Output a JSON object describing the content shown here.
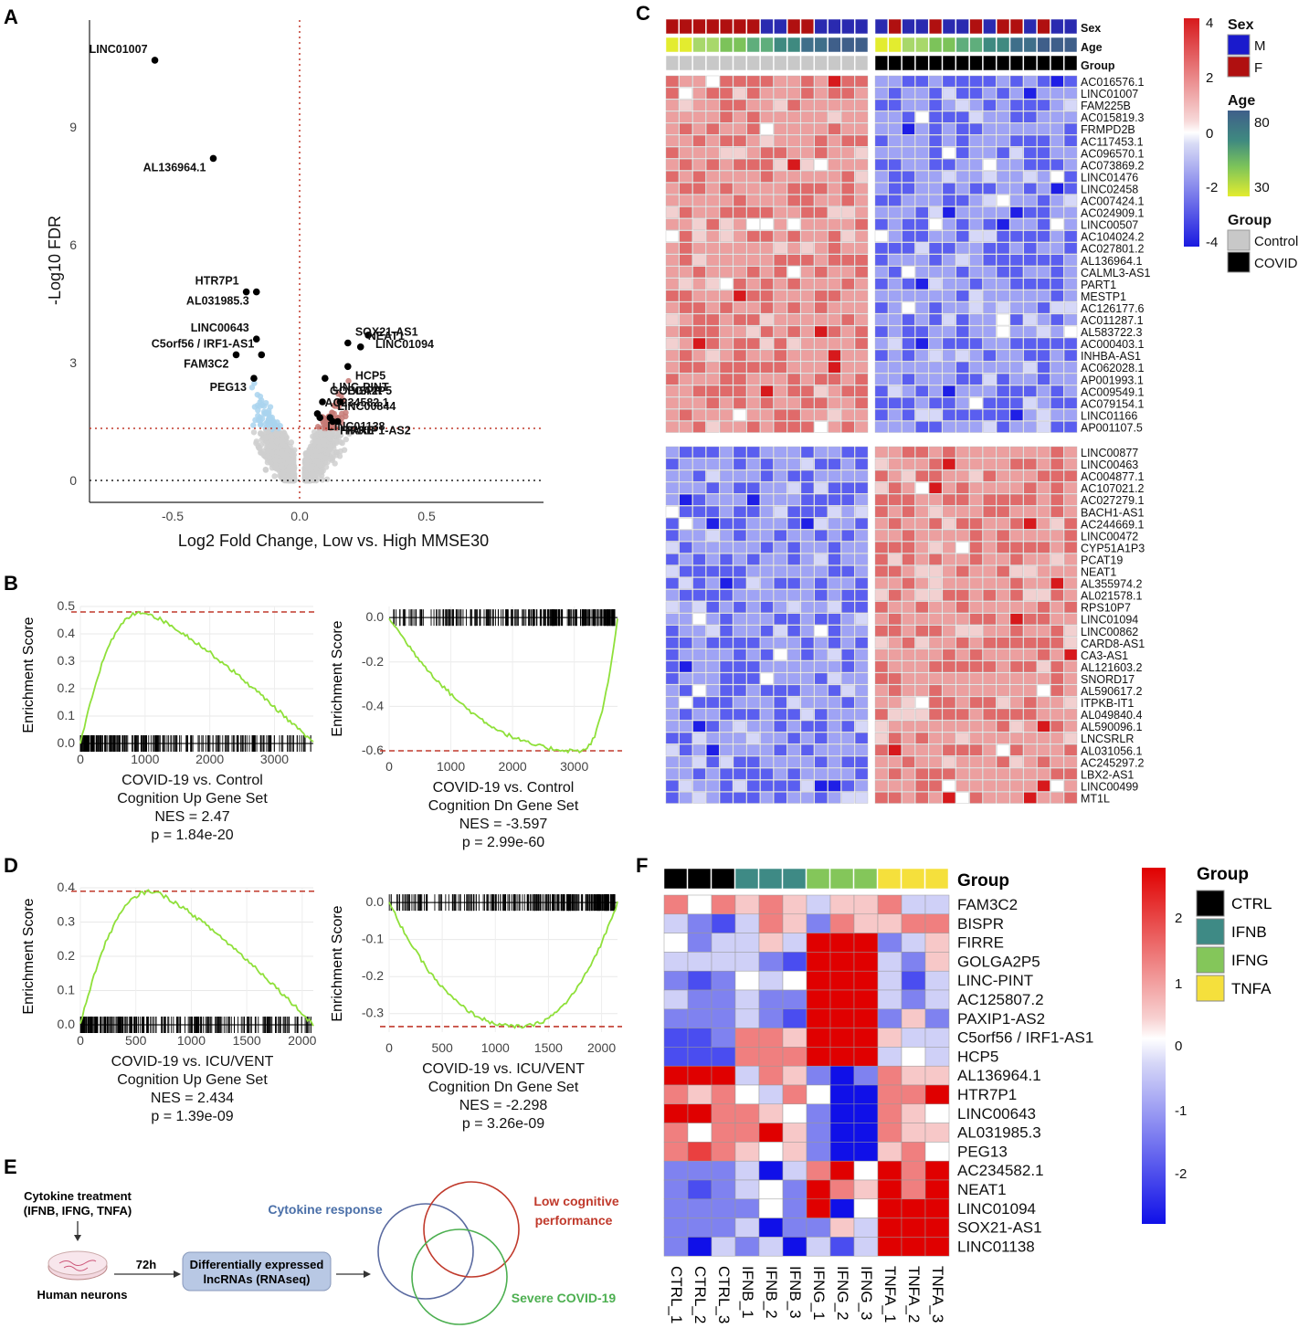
{
  "panels": {
    "A": "A",
    "B": "B",
    "C": "C",
    "D": "D",
    "E": "E",
    "F": "F"
  },
  "volcano": {
    "xlabel": "Log2 Fold Change, Low vs. High MMSE30",
    "ylabel": "-Log10 FDR",
    "xticks": [
      "-0.5",
      "0.0",
      "0.5"
    ],
    "yticks": [
      "0",
      "3",
      "6",
      "9"
    ],
    "genes": [
      {
        "name": "LINC01007",
        "x": -0.57,
        "y": 10.7
      },
      {
        "name": "AL136964.1",
        "x": -0.34,
        "y": 8.2
      },
      {
        "name": "HTR7P1",
        "x": -0.21,
        "y": 4.8
      },
      {
        "name": "AL031985.3",
        "x": -0.17,
        "y": 4.8
      },
      {
        "name": "LINC00643",
        "x": -0.17,
        "y": 3.6
      },
      {
        "name": "FAM3C2",
        "x": -0.25,
        "y": 3.2
      },
      {
        "name": "C5orf56 / IRF1-AS1",
        "x": -0.15,
        "y": 3.2
      },
      {
        "name": "PEG13",
        "x": -0.18,
        "y": 2.6
      },
      {
        "name": "GOLGA2P5",
        "x": 0.09,
        "y": 2.0
      },
      {
        "name": "LINC01138",
        "x": 0.08,
        "y": 1.6
      },
      {
        "name": "AC234582.1",
        "x": 0.07,
        "y": 1.7
      },
      {
        "name": "LINC-PINT",
        "x": 0.1,
        "y": 2.6
      },
      {
        "name": "SOX21-AS1",
        "x": 0.19,
        "y": 3.5
      },
      {
        "name": "LINC01094",
        "x": 0.27,
        "y": 3.7
      },
      {
        "name": "NEAT1",
        "x": 0.24,
        "y": 3.4
      },
      {
        "name": "HCP5",
        "x": 0.19,
        "y": 2.9
      },
      {
        "name": "BISPR",
        "x": 0.16,
        "y": 2.0
      },
      {
        "name": "FIRRE",
        "x": 0.13,
        "y": 1.5
      },
      {
        "name": "LINC00844",
        "x": 0.12,
        "y": 1.6
      },
      {
        "name": "PAXIP1-AS2",
        "x": 0.15,
        "y": 1.5
      }
    ]
  },
  "gsea": [
    {
      "title": "COVID-19 vs. Control",
      "set": "Cognition Up Gene Set",
      "nes": "NES = 2.47",
      "p": "p = 1.84e-20",
      "ylabel": "Enrichment Score",
      "yticks": [
        "0.0",
        "0.1",
        "0.2",
        "0.3",
        "0.4",
        "0.5"
      ],
      "xticks": [
        "0",
        "1000",
        "2000",
        "3000"
      ]
    },
    {
      "title": "COVID-19 vs. Control",
      "set": "Cognition Dn Gene Set",
      "nes": "NES = -3.597",
      "p": "p = 2.99e-60",
      "ylabel": "Enrichment Score",
      "yticks": [
        "0.0",
        "-0.2",
        "-0.4",
        "-0.6"
      ],
      "xticks": [
        "0",
        "1000",
        "2000",
        "3000"
      ]
    },
    {
      "title": "COVID-19 vs. ICU/VENT",
      "set": "Cognition Up Gene Set",
      "nes": "NES = 2.434",
      "p": "p = 1.39e-09",
      "ylabel": "Enrichment Score",
      "yticks": [
        "0.0",
        "0.1",
        "0.2",
        "0.3",
        "0.4"
      ],
      "xticks": [
        "0",
        "500",
        "1000",
        "1500",
        "2000"
      ]
    },
    {
      "title": "COVID-19 vs. ICU/VENT",
      "set": "Cognition Dn Gene Set",
      "nes": "NES = -2.298",
      "p": "p = 3.26e-09",
      "ylabel": "Enrichment Score",
      "yticks": [
        "0.0",
        "-0.1",
        "-0.2",
        "-0.3"
      ],
      "xticks": [
        "0",
        "500",
        "1000",
        "1500",
        "2000"
      ]
    }
  ],
  "heatmapC": {
    "annot_labels": [
      "Sex",
      "Age",
      "Group"
    ],
    "rows_top": [
      "AC016576.1",
      "LINC01007",
      "FAM225B",
      "AC015819.3",
      "FRMPD2B",
      "AC117453.1",
      "AC096570.1",
      "AC073869.2",
      "LINC01476",
      "LINC02458",
      "AC007424.1",
      "AC024909.1",
      "LINC00507",
      "AC104024.2",
      "AC027801.2",
      "AL136964.1",
      "CALML3-AS1",
      "PART1",
      "MESTP1",
      "AC126177.6",
      "AC011287.1",
      "AL583722.3",
      "AC000403.1",
      "INHBA-AS1",
      "AC062028.1",
      "AP001993.1",
      "AC009549.1",
      "AC079154.1",
      "LINC01166",
      "AP001107.5"
    ],
    "rows_bottom": [
      "LINC00877",
      "LINC00463",
      "AC004877.1",
      "AC107021.2",
      "AC027279.1",
      "BACH1-AS1",
      "AC244669.1",
      "LINC00472",
      "CYP51A1P3",
      "PCAT19",
      "NEAT1",
      "AL355974.2",
      "AL021578.1",
      "RPS10P7",
      "LINC01094",
      "LINC00862",
      "CARD8-AS1",
      "CA3-AS1",
      "AL121603.2",
      "SNORD17",
      "AL590617.2",
      "ITPKB-IT1",
      "AL049840.4",
      "AL590096.1",
      "LNCSRLR",
      "AL031056.1",
      "AC245297.2",
      "LBX2-AS1",
      "LINC00499",
      "MT1L"
    ],
    "scale": [
      "4",
      "2",
      "0",
      "-2",
      "-4"
    ],
    "legend": {
      "sex_title": "Sex",
      "sex": [
        "M",
        "F"
      ],
      "age_title": "Age",
      "age": [
        "80",
        "30"
      ],
      "group_title": "Group",
      "group": [
        "Control",
        "COVID"
      ]
    }
  },
  "panelE": {
    "treatment": "Cytokine treatment",
    "treatment2": "(IFNB, IFNG, TNFA)",
    "neurons": "Human neurons",
    "time": "72h",
    "box1": "Differentially expressed",
    "box2": "lncRNAs (RNAseq)",
    "venn1": "Cytokine response",
    "venn2a": "Low cognitive",
    "venn2b": "performance",
    "venn3": "Severe COVID-19",
    "colors": {
      "blue": "#4a6fa8",
      "red": "#c0392b",
      "green": "#4caf50"
    }
  },
  "heatmapF": {
    "group_label": "Group",
    "rows": [
      "FAM3C2",
      "BISPR",
      "FIRRE",
      "GOLGA2P5",
      "LINC-PINT",
      "AC125807.2",
      "PAXIP1-AS2",
      "C5orf56 / IRF1-AS1",
      "HCP5",
      "AL136964.1",
      "HTR7P1",
      "LINC00643",
      "AL031985.3",
      "PEG13",
      "AC234582.1",
      "NEAT1",
      "LINC01094",
      "SOX21-AS1",
      "LINC01138"
    ],
    "cols": [
      "CTRL_1",
      "CTRL_2",
      "CTRL_3",
      "IFNB_1",
      "IFNB_2",
      "IFNB_3",
      "IFNG_1",
      "IFNG_2",
      "IFNG_3",
      "TNFA_1",
      "TNFA_2",
      "TNFA_3"
    ],
    "values": [
      [
        1,
        0,
        1,
        0.5,
        1,
        0.5,
        -0.5,
        0.5,
        0.5,
        1,
        -0.5,
        -0.5
      ],
      [
        -0.5,
        -1,
        -1.5,
        -0.5,
        1,
        0.5,
        -1,
        1,
        0.5,
        0.5,
        1,
        1
      ],
      [
        0,
        -1,
        -0.5,
        -0.5,
        0.5,
        -0.5,
        2,
        2,
        2,
        -1,
        -0.5,
        0.5
      ],
      [
        -0.5,
        -0.5,
        -0.5,
        -0.5,
        -1,
        -1.5,
        2,
        2,
        2,
        -0.5,
        -1,
        0.5
      ],
      [
        -1,
        -1.5,
        -1,
        0,
        -0.5,
        0,
        2,
        2,
        2,
        -0.5,
        -1.5,
        -0.5
      ],
      [
        -0.5,
        -1,
        -1,
        -0.5,
        -1,
        -1,
        2,
        2,
        2,
        -0.5,
        -1,
        -0.5
      ],
      [
        -1,
        -1,
        -1,
        -0.5,
        -1,
        -1.5,
        2,
        2,
        2,
        -1,
        0.5,
        -1
      ],
      [
        -1.5,
        -1.5,
        -1,
        1,
        1,
        0.5,
        2,
        2,
        2,
        0.5,
        -0.5,
        -0.5
      ],
      [
        -1.5,
        -1.5,
        -1.5,
        1,
        1,
        1,
        2,
        2,
        2,
        -0.5,
        0,
        -0.5
      ],
      [
        2,
        2,
        2,
        -0.5,
        1,
        0.5,
        -1,
        -2,
        -1,
        1,
        0.5,
        0.5
      ],
      [
        1,
        0.5,
        1,
        0,
        -0.5,
        1,
        0,
        -2,
        -2,
        1,
        1,
        2
      ],
      [
        2,
        2,
        1,
        1,
        0.5,
        0,
        -1,
        -2,
        -2,
        1,
        0.5,
        0
      ],
      [
        1,
        0,
        1,
        1,
        2,
        0.5,
        -1,
        -2,
        -2,
        1,
        0.5,
        0.5
      ],
      [
        1,
        1.5,
        1,
        0.5,
        0,
        0.5,
        -1,
        -2,
        -2,
        0.5,
        1,
        0
      ],
      [
        -1,
        -1,
        -1,
        -0.5,
        -2,
        -0.5,
        1,
        2,
        0,
        2,
        1,
        2
      ],
      [
        -1,
        -1.5,
        -1,
        -0.5,
        0,
        -1,
        2,
        1,
        0.5,
        2,
        1,
        2
      ],
      [
        -1,
        -1,
        -1,
        -1,
        0,
        -1,
        2,
        -2,
        0,
        2,
        2,
        2
      ],
      [
        -1,
        -1,
        -1,
        -0.5,
        -2,
        -1,
        -1,
        0.5,
        -0.5,
        2,
        2,
        2
      ],
      [
        -1,
        -2,
        -0.5,
        -1,
        -0.5,
        -2,
        -0.5,
        -1.5,
        -0.5,
        2,
        2,
        2
      ]
    ],
    "groups": [
      "CTRL",
      "IFNB",
      "IFNG",
      "TNFA"
    ],
    "group_colors": [
      "#000000",
      "#3e8a85",
      "#84c65a",
      "#f5e03c"
    ],
    "scale": [
      "2",
      "1",
      "0",
      "-1",
      "-2"
    ]
  }
}
